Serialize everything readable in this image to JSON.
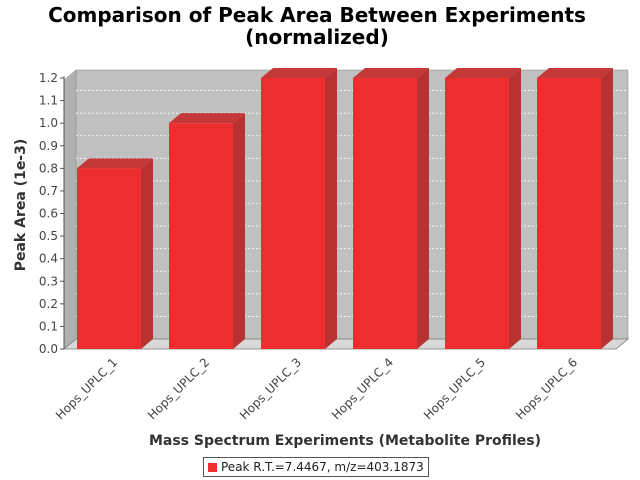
{
  "chart_data": {
    "type": "bar",
    "title_lines": [
      "Comparison of Peak Area Between Experiments",
      "(normalized)"
    ],
    "xlabel": "Mass Spectrum Experiments (Metabolite Profiles)",
    "ylabel": "Peak Area (1e-3)",
    "categories": [
      "Hops_UPLC_1",
      "Hops_UPLC_2",
      "Hops_UPLC_3",
      "Hops_UPLC_4",
      "Hops_UPLC_5",
      "Hops_UPLC_6"
    ],
    "series": [
      {
        "name": "Peak R.T.=7.4467, m/z=403.1873",
        "values": [
          0.8,
          1.0,
          1.2,
          1.2,
          1.2,
          1.2
        ],
        "color": "#ee2e2e"
      }
    ],
    "ylim": [
      0,
      1.2
    ],
    "yticks": [
      "0.0",
      "0.1",
      "0.2",
      "0.3",
      "0.4",
      "0.5",
      "0.6",
      "0.7",
      "0.8",
      "0.9",
      "1.0",
      "1.1",
      "1.2"
    ],
    "grid": true,
    "legend_position": "bottom-center",
    "three_d": true
  }
}
